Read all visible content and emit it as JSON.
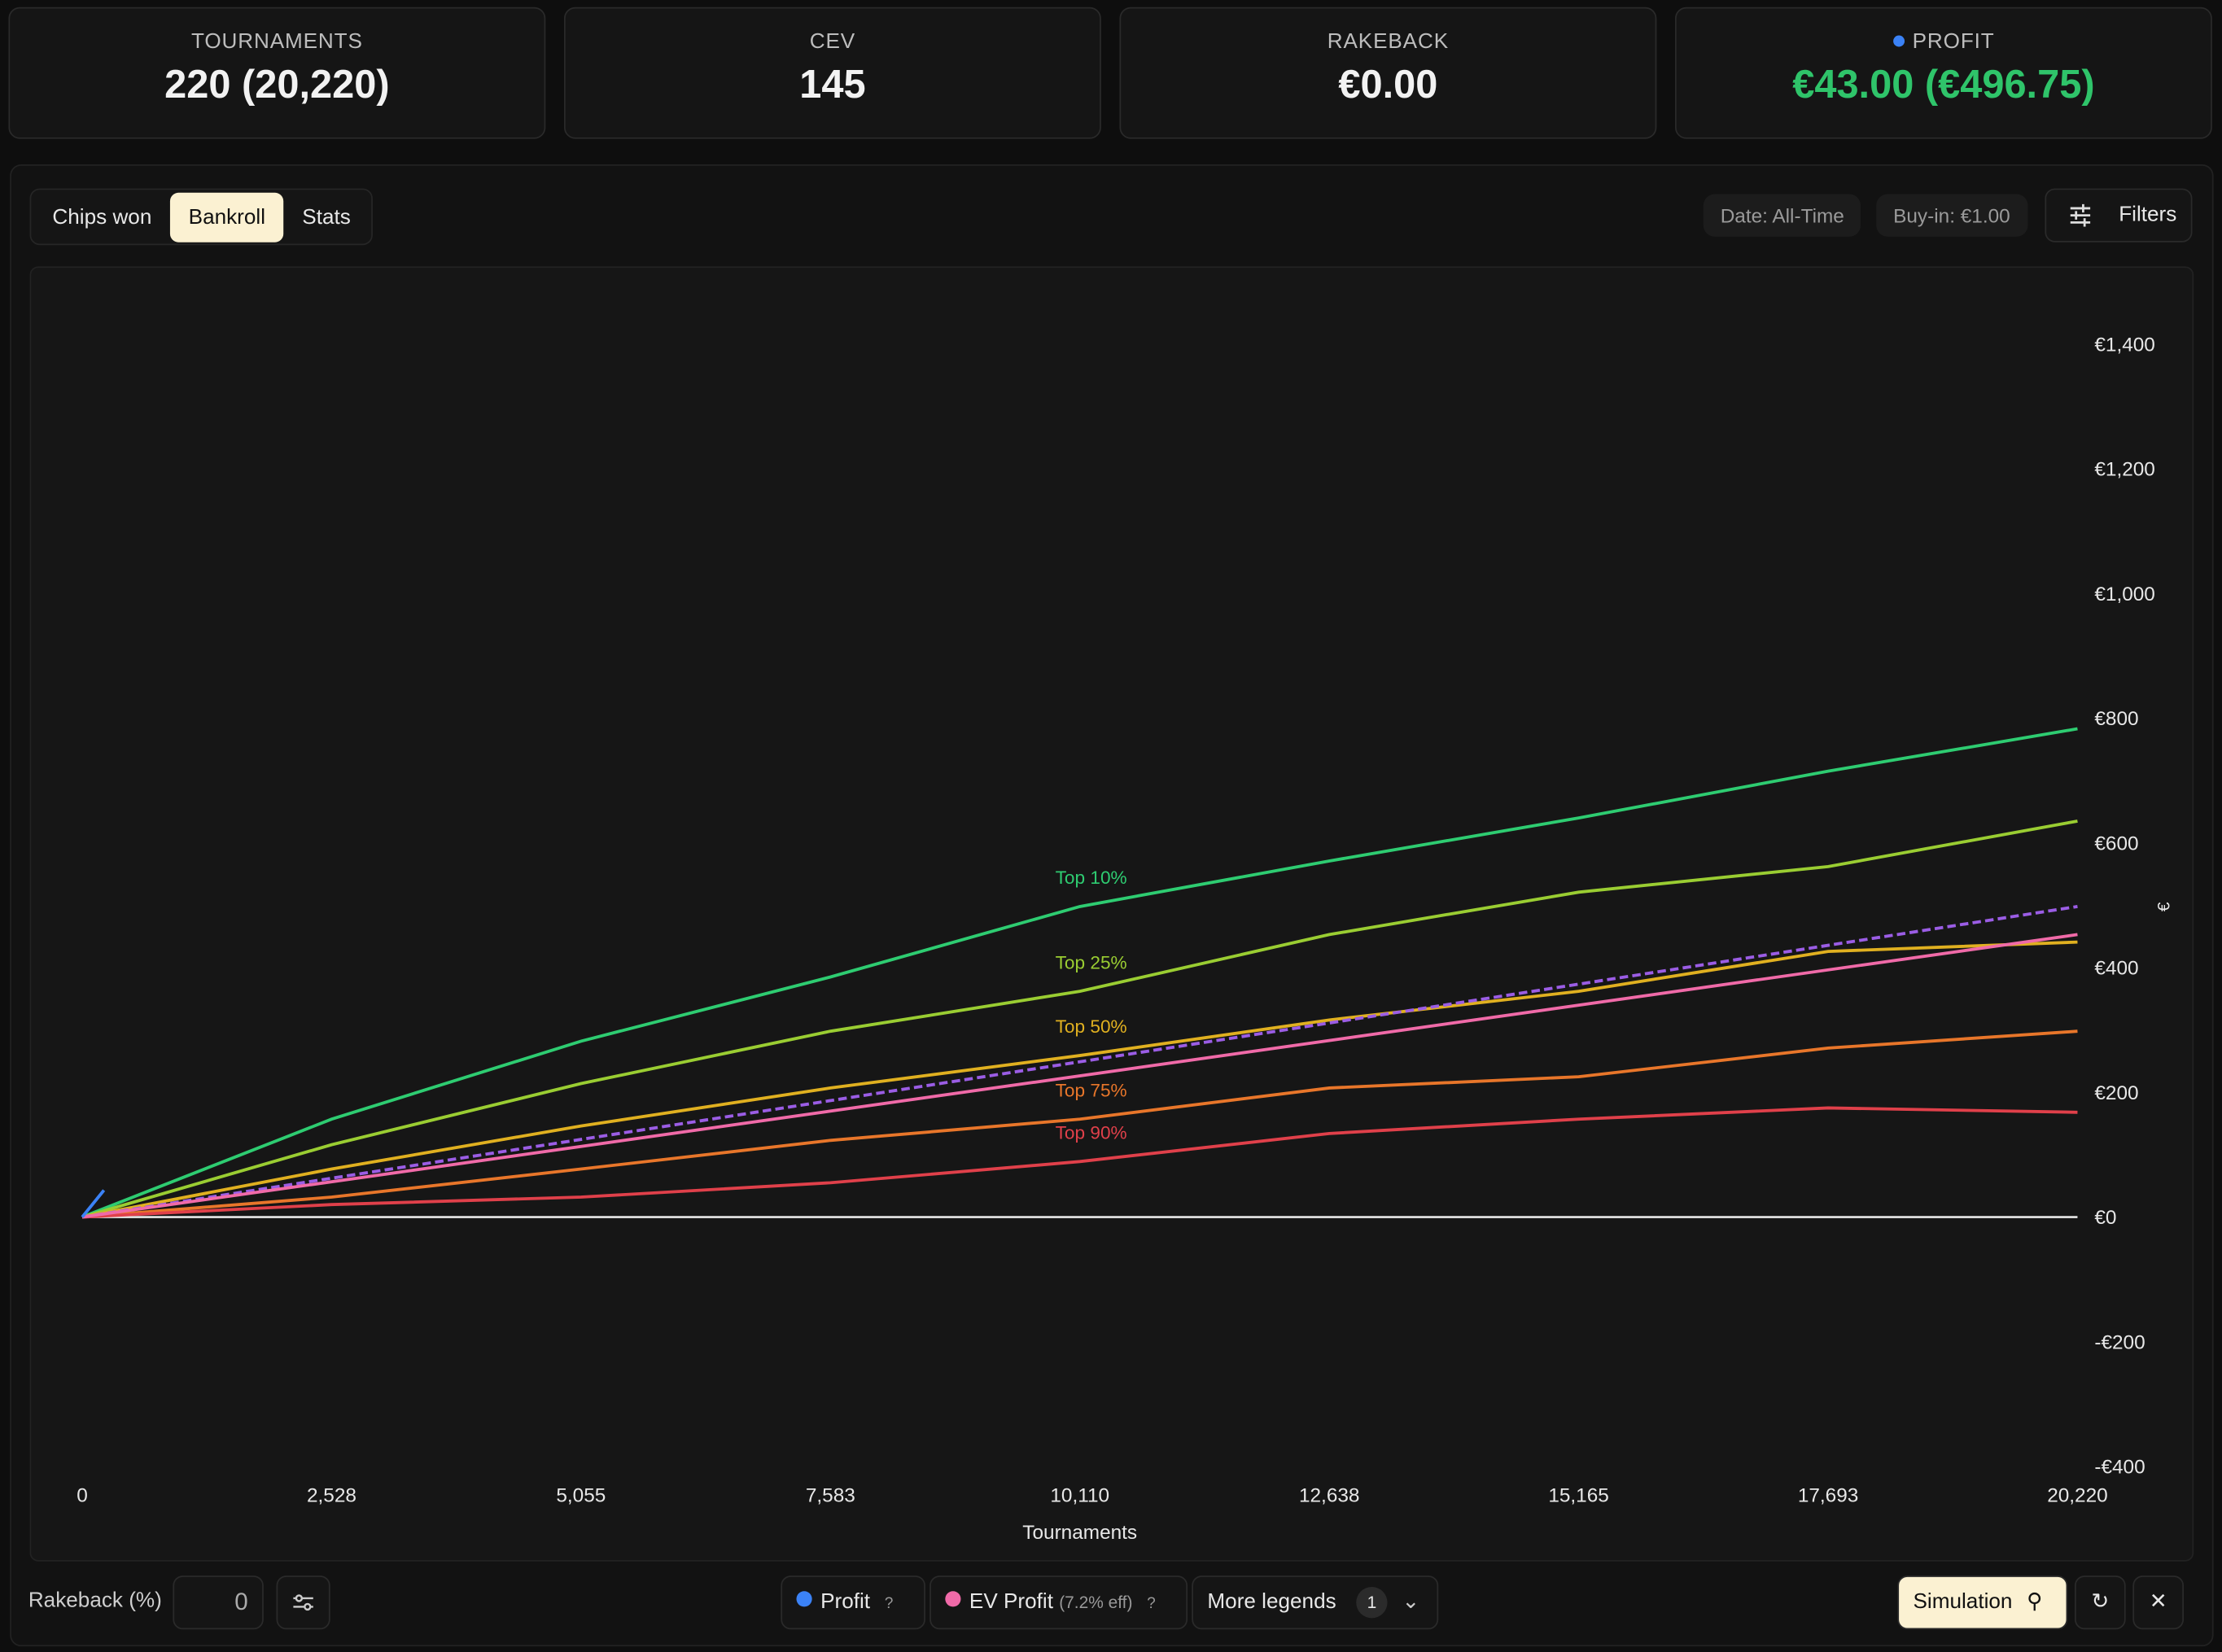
{
  "stats": [
    {
      "label": "TOURNAMENTS",
      "value": "220 (20,220)"
    },
    {
      "label": "CEV",
      "value": "145"
    },
    {
      "label": "RAKEBACK",
      "value": "€0.00"
    },
    {
      "label": "PROFIT",
      "value": "€43.00",
      "total": "(€496.75)"
    }
  ],
  "tabs": [
    "Chips won",
    "Bankroll",
    "Stats"
  ],
  "filters": {
    "date": "Date: All-Time",
    "buyin": "Buy-in: €1.00",
    "button": "Filters"
  },
  "chart_data": {
    "type": "line",
    "x_label": "Tournaments",
    "y_label": "€",
    "x": [
      0,
      2528,
      5055,
      7583,
      10110,
      12638,
      15165,
      17693,
      20220
    ],
    "xlim": [
      0,
      20220
    ],
    "xticks": [
      0,
      {
        "value": 2528,
        "label": "2,528"
      },
      {
        "value": 5055,
        "label": "5,055"
      },
      {
        "value": 7583,
        "label": "7,583"
      },
      {
        "value": 10110,
        "label": "10,110"
      },
      {
        "value": 12638,
        "label": "12,638"
      },
      {
        "value": 15165,
        "label": "15,165"
      },
      {
        "value": 17693,
        "label": "17,693"
      },
      {
        "value": 20220,
        "label": "20,220"
      }
    ],
    "ylim": [
      -400,
      1520
    ],
    "yticks": [
      {
        "value": -400,
        "label": "-€400"
      },
      {
        "value": -200,
        "label": "-€200"
      },
      {
        "value": 0,
        "label": "€0"
      },
      {
        "value": 200,
        "label": "€200"
      },
      {
        "value": 400,
        "label": "€400"
      },
      {
        "value": 600,
        "label": "€600"
      },
      {
        "value": 800,
        "label": "€800"
      },
      {
        "value": 1000,
        "label": "€1,000"
      },
      {
        "value": 1200,
        "label": "€1,200"
      },
      {
        "value": 1400,
        "label": "€1,400"
      }
    ],
    "series": [
      {
        "name": "Top 10%",
        "color": "#2ecc71",
        "values": [
          0,
          157,
          282,
          385,
          498,
          571,
          640,
          715,
          783
        ]
      },
      {
        "name": "Top 25%",
        "color": "#9acd32",
        "values": [
          0,
          116,
          214,
          298,
          362,
          453,
          521,
          562,
          635
        ]
      },
      {
        "name": "Top 50%",
        "color": "#e0b020",
        "values": [
          0,
          77,
          146,
          207,
          259,
          316,
          362,
          426,
          441
        ]
      },
      {
        "name": "Top 75%",
        "color": "#e8762a",
        "values": [
          0,
          32,
          77,
          123,
          157,
          207,
          225,
          271,
          298
        ]
      },
      {
        "name": "Top 90%",
        "color": "#e0404a",
        "values": [
          0,
          20,
          32,
          55,
          89,
          134,
          157,
          175,
          168
        ]
      },
      {
        "color": "#9b5de5",
        "dashed": true,
        "x": [
          0,
          20220
        ],
        "values": [
          0,
          498
        ]
      },
      {
        "name": "EV Profit",
        "color": "#f06aa8",
        "x": [
          0,
          20220
        ],
        "values": [
          0,
          453
        ]
      },
      {
        "name": "Profit",
        "color": "#3b82f6",
        "x": [
          0,
          220
        ],
        "values": [
          0,
          43
        ]
      }
    ]
  },
  "footer": {
    "rakeback_label": "Rakeback (%)",
    "rakeback_value": "0",
    "help": "?",
    "ev_eff": "(7.2% eff)",
    "more": "More legends",
    "more_count": "1",
    "simulation": "Simulation"
  }
}
